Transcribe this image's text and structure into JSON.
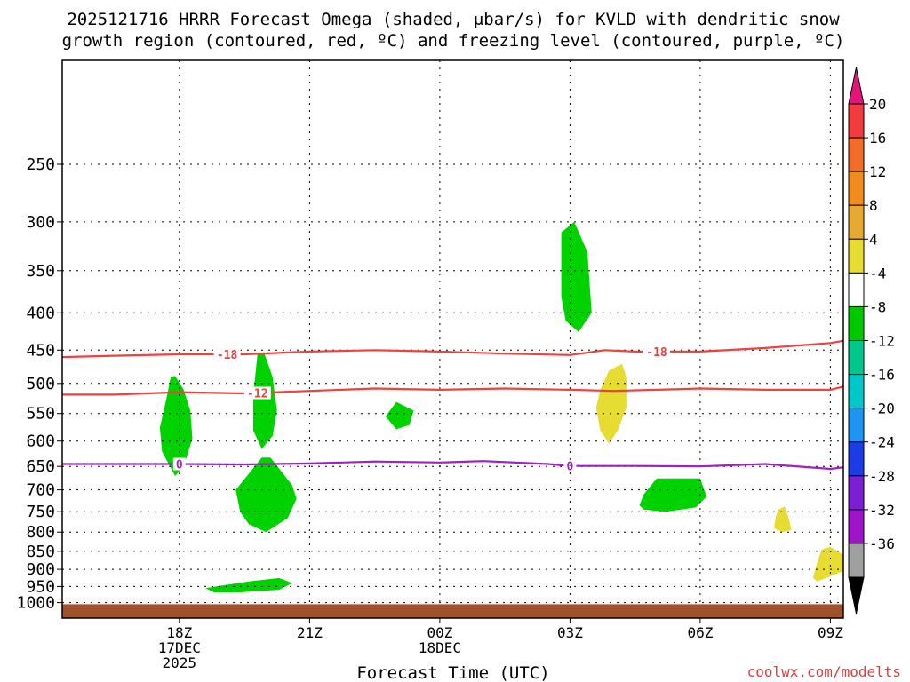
{
  "chart_data": {
    "type": "heatmap",
    "title_line1": "2025121716 HRRR Forecast Omega (shaded, μbar/s) for KVLD with dendritic snow",
    "title_line2": "growth region (contoured, red, ºC) and freezing level (contoured, purple, ºC)",
    "xlabel": "Forecast Time (UTC)",
    "ylabel": "",
    "credit": "coolwx.com/modelts",
    "xlim": [
      15.3,
      33.3
    ],
    "ylim": [
      1050,
      180
    ],
    "x_ticks": [
      {
        "x": 18,
        "lines": [
          "18Z",
          "17DEC",
          "2025"
        ]
      },
      {
        "x": 21,
        "lines": [
          "21Z"
        ]
      },
      {
        "x": 24,
        "lines": [
          "00Z",
          "18DEC"
        ]
      },
      {
        "x": 27,
        "lines": [
          "03Z"
        ]
      },
      {
        "x": 30,
        "lines": [
          "06Z"
        ]
      },
      {
        "x": 33,
        "lines": [
          "09Z"
        ]
      }
    ],
    "y_ticks": [
      {
        "p": 250,
        "label": "250"
      },
      {
        "p": 300,
        "label": "300"
      },
      {
        "p": 350,
        "label": "350"
      },
      {
        "p": 400,
        "label": "400"
      },
      {
        "p": 450,
        "label": "450"
      },
      {
        "p": 500,
        "label": "500"
      },
      {
        "p": 550,
        "label": "550"
      },
      {
        "p": 600,
        "label": "600"
      },
      {
        "p": 650,
        "label": "650"
      },
      {
        "p": 700,
        "label": "700"
      },
      {
        "p": 750,
        "label": "750"
      },
      {
        "p": 800,
        "label": "800"
      },
      {
        "p": 850,
        "label": "850"
      },
      {
        "p": 900,
        "label": "900"
      },
      {
        "p": 950,
        "label": "950"
      },
      {
        "p": 1000,
        "label": "1000"
      }
    ],
    "contours": [
      {
        "name": "-18",
        "color": "#f04040",
        "points": [
          [
            15.3,
            460
          ],
          [
            16.5,
            458
          ],
          [
            18,
            456
          ],
          [
            19.5,
            456
          ],
          [
            21,
            452
          ],
          [
            22.5,
            450
          ],
          [
            24,
            452
          ],
          [
            25.5,
            455
          ],
          [
            27,
            457
          ],
          [
            27.8,
            450
          ],
          [
            28.5,
            452
          ],
          [
            30,
            452
          ],
          [
            31.5,
            447
          ],
          [
            33,
            440
          ],
          [
            33.3,
            437
          ]
        ],
        "labels": [
          {
            "x": 19.1,
            "text": "-18"
          },
          {
            "x": 29.0,
            "text": "-18"
          }
        ]
      },
      {
        "name": "-12",
        "color": "#f04040",
        "points": [
          [
            15.3,
            518
          ],
          [
            16.5,
            518
          ],
          [
            18,
            514
          ],
          [
            19.5,
            516
          ],
          [
            21,
            512
          ],
          [
            22.5,
            508
          ],
          [
            24,
            510
          ],
          [
            25.5,
            508
          ],
          [
            27,
            510
          ],
          [
            28,
            512
          ],
          [
            29,
            510
          ],
          [
            30,
            508
          ],
          [
            31.5,
            510
          ],
          [
            33,
            510
          ],
          [
            33.3,
            505
          ]
        ],
        "labels": [
          {
            "x": 19.8,
            "text": "-12"
          }
        ]
      },
      {
        "name": "0",
        "color": "#a020c8",
        "points": [
          [
            15.3,
            645
          ],
          [
            16.5,
            645
          ],
          [
            18,
            645
          ],
          [
            19.5,
            646
          ],
          [
            21,
            644
          ],
          [
            22.5,
            640
          ],
          [
            24,
            642
          ],
          [
            25,
            639
          ],
          [
            26.5,
            645
          ],
          [
            27,
            649
          ],
          [
            28.5,
            649
          ],
          [
            30,
            650
          ],
          [
            31.5,
            645
          ],
          [
            33,
            655
          ],
          [
            33.3,
            652
          ]
        ],
        "labels": [
          {
            "x": 18.0,
            "text": "0"
          },
          {
            "x": 27.0,
            "text": "0"
          }
        ]
      }
    ],
    "shaded_regions": [
      {
        "name": "omega-green-300",
        "color": "#00d200",
        "points": [
          [
            26.8,
            310
          ],
          [
            27.1,
            300
          ],
          [
            27.4,
            330
          ],
          [
            27.5,
            400
          ],
          [
            27.2,
            425
          ],
          [
            26.9,
            410
          ],
          [
            26.8,
            380
          ]
        ]
      },
      {
        "name": "omega-green-500-a",
        "color": "#00d200",
        "points": [
          [
            17.8,
            490
          ],
          [
            17.9,
            488
          ],
          [
            18.1,
            510
          ],
          [
            18.25,
            545
          ],
          [
            18.3,
            595
          ],
          [
            18.1,
            650
          ],
          [
            17.9,
            670
          ],
          [
            17.6,
            620
          ],
          [
            17.55,
            575
          ],
          [
            17.7,
            525
          ]
        ]
      },
      {
        "name": "omega-green-500-b",
        "color": "#00d200",
        "points": [
          [
            19.8,
            455
          ],
          [
            19.95,
            453
          ],
          [
            20.15,
            490
          ],
          [
            20.25,
            545
          ],
          [
            20.15,
            590
          ],
          [
            19.9,
            615
          ],
          [
            19.7,
            580
          ],
          [
            19.7,
            520
          ]
        ]
      },
      {
        "name": "omega-green-550",
        "color": "#00d200",
        "points": [
          [
            23.0,
            530
          ],
          [
            23.4,
            545
          ],
          [
            23.3,
            570
          ],
          [
            23.0,
            578
          ],
          [
            22.75,
            555
          ]
        ]
      },
      {
        "name": "omega-green-700",
        "color": "#00d200",
        "points": [
          [
            19.9,
            632
          ],
          [
            20.1,
            632
          ],
          [
            20.6,
            690
          ],
          [
            20.7,
            720
          ],
          [
            20.5,
            765
          ],
          [
            20.0,
            800
          ],
          [
            19.6,
            780
          ],
          [
            19.4,
            750
          ],
          [
            19.3,
            700
          ],
          [
            19.6,
            665
          ]
        ]
      },
      {
        "name": "omega-green-720",
        "color": "#00d200",
        "points": [
          [
            29.0,
            675
          ],
          [
            30.0,
            675
          ],
          [
            30.15,
            715
          ],
          [
            29.9,
            740
          ],
          [
            29.2,
            750
          ],
          [
            28.7,
            745
          ],
          [
            28.6,
            735
          ],
          [
            28.7,
            710
          ]
        ]
      },
      {
        "name": "omega-green-950",
        "color": "#00d200",
        "points": [
          [
            18.6,
            955
          ],
          [
            19.6,
            935
          ],
          [
            20.3,
            925
          ],
          [
            20.6,
            940
          ],
          [
            20.3,
            960
          ],
          [
            19.4,
            968
          ],
          [
            18.8,
            968
          ]
        ]
      },
      {
        "name": "omega-yellow-500",
        "color": "#e6dc32",
        "points": [
          [
            27.9,
            480
          ],
          [
            28.2,
            470
          ],
          [
            28.3,
            490
          ],
          [
            28.3,
            540
          ],
          [
            28.1,
            580
          ],
          [
            27.9,
            605
          ],
          [
            27.7,
            580
          ],
          [
            27.6,
            540
          ],
          [
            27.7,
            510
          ]
        ]
      },
      {
        "name": "omega-yellow-770",
        "color": "#e6dc32",
        "points": [
          [
            31.8,
            745
          ],
          [
            31.95,
            738
          ],
          [
            32.05,
            770
          ],
          [
            32.1,
            795
          ],
          [
            31.9,
            800
          ],
          [
            31.7,
            790
          ],
          [
            31.75,
            760
          ]
        ]
      },
      {
        "name": "omega-yellow-880",
        "color": "#e6dc32",
        "points": [
          [
            33.0,
            838
          ],
          [
            33.3,
            860
          ],
          [
            33.3,
            905
          ],
          [
            33.0,
            920
          ],
          [
            32.7,
            935
          ],
          [
            32.6,
            925
          ],
          [
            32.7,
            880
          ],
          [
            32.8,
            845
          ]
        ]
      }
    ],
    "ground": {
      "top_p": 1005,
      "color": "#a0522d"
    },
    "colorbar": {
      "labels": [
        "20",
        "16",
        "12",
        "8",
        "4",
        "-4",
        "-8",
        "-12",
        "-16",
        "-20",
        "-24",
        "-28",
        "-32",
        "-36"
      ],
      "colors": [
        "#f03c3c",
        "#f06e28",
        "#f08c1e",
        "#e6aa32",
        "#e6dc32",
        "#ffffff",
        "#00c800",
        "#00c88c",
        "#00c8c8",
        "#1e96f0",
        "#1e3ce6",
        "#7820d2",
        "#a014c8",
        "#a0a0a0"
      ],
      "top_arrow_color": "#e6147a",
      "bottom_arrow_color": "#000000"
    }
  }
}
